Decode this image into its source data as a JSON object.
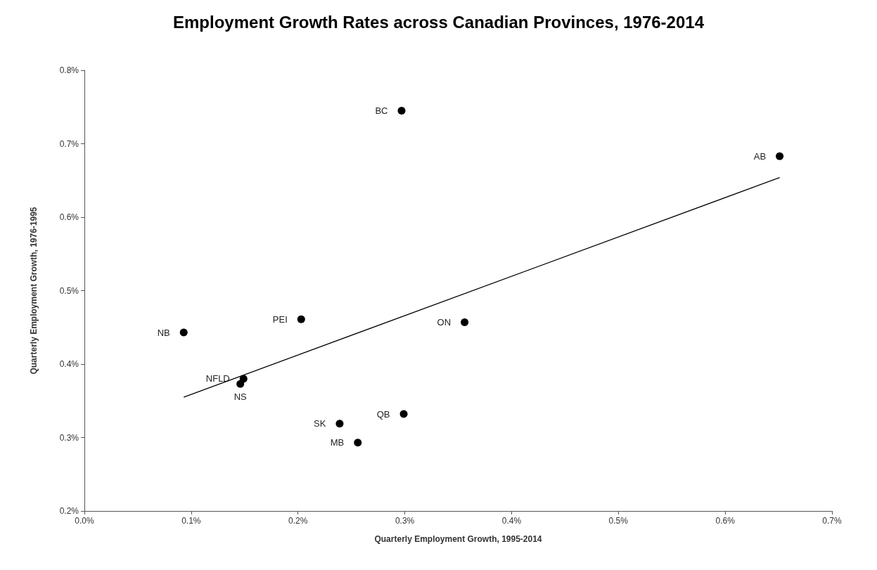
{
  "chart_data": {
    "type": "scatter",
    "title": "Employment Growth Rates across Canadian Provinces, 1976-2014",
    "xlabel": "Quarterly Employment Growth, 1995-2014",
    "ylabel": "Quarterly Employment Growth, 1976-1995",
    "xlim": [
      0,
      0.7
    ],
    "xticks": [
      {
        "value": 0,
        "label": "0.0%"
      },
      {
        "value": 0.1,
        "label": "0.1%"
      },
      {
        "value": 0.2,
        "label": "0.2%"
      },
      {
        "value": 0.3,
        "label": "0.3%"
      },
      {
        "value": 0.4,
        "label": "0.4%"
      },
      {
        "value": 0.5,
        "label": "0.5%"
      },
      {
        "value": 0.6,
        "label": "0.6%"
      },
      {
        "value": 0.7,
        "label": "0.7%"
      }
    ],
    "ylim": [
      0.2,
      0.8
    ],
    "yticks": [
      {
        "value": 0.2,
        "label": "0.2%"
      },
      {
        "value": 0.3,
        "label": "0.3%"
      },
      {
        "value": 0.4,
        "label": "0.4%"
      },
      {
        "value": 0.5,
        "label": "0.5%"
      },
      {
        "value": 0.6,
        "label": "0.6%"
      },
      {
        "value": 0.7,
        "label": "0.7%"
      },
      {
        "value": 0.8,
        "label": "0.8%"
      }
    ],
    "grid": false,
    "series": [
      {
        "type": "scatter",
        "color": "#000000",
        "marker": "circle",
        "x": [
          0.297,
          0.651,
          0.203,
          0.356,
          0.093,
          0.149,
          0.146,
          0.299,
          0.239,
          0.256
        ],
        "values": [
          0.745,
          0.683,
          0.461,
          0.457,
          0.443,
          0.38,
          0.373,
          0.332,
          0.319,
          0.293
        ],
        "value_labels": [
          "BC",
          "AB",
          "PEI",
          "ON",
          "NB",
          "NFLD",
          "NS",
          "QB",
          "SK",
          "MB"
        ]
      },
      {
        "type": "line",
        "color": "#000000",
        "marker": "none",
        "x": [
          0.093,
          0.651
        ],
        "values": [
          0.355,
          0.654
        ]
      }
    ]
  }
}
